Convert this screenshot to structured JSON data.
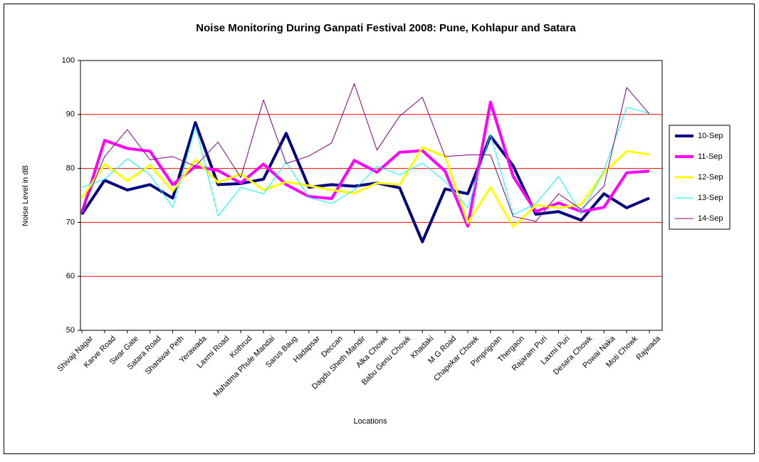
{
  "chart_data": {
    "type": "line",
    "title": "Noise Monitoring During Ganpati Festival 2008: Pune, Kohlapur and Satara",
    "y_label": "Noise Level in dB",
    "x_label": "Locations",
    "categories": [
      "Shivaji Nagar",
      "Karve Road",
      "Swar Gate",
      "Satara Road",
      "Shaniwar Peth",
      "Yerawada",
      "Laxmi Road",
      "Kothrud",
      "Mahatma Phule Mandai",
      "Sarus Baug",
      "Hadapsar",
      "Deccan",
      "Dagdu Sheth Mandir",
      "Alka Chowk",
      "Babu Genu Chowk",
      "Khadaki",
      "M G Road",
      "Chapekar Chowk",
      "Pimprigoan",
      "Thergaon",
      "Rajaram Puri",
      "Laxmi Puri",
      "Desara Chowk",
      "Powai Naka",
      "Moti Chowk",
      "Rajwada"
    ],
    "series": [
      {
        "name": "10-Sep",
        "color": "#000080",
        "values": [
          71.5,
          77.8,
          76,
          77,
          74.5,
          88.5,
          77,
          77.2,
          78,
          86.5,
          76.5,
          77,
          76.7,
          77.3,
          76.4,
          66.4,
          76.2,
          75.3,
          86,
          80.5,
          71.5,
          72,
          70.4,
          75.3,
          72.7,
          74.5
        ]
      },
      {
        "name": "11-Sep",
        "color": "#ff00ff",
        "values": [
          71.8,
          85.2,
          83.7,
          83.2,
          77,
          80.4,
          79.6,
          77.3,
          80.8,
          77,
          74.8,
          74.4,
          81.5,
          79.3,
          83,
          83.3,
          79.5,
          69.3,
          92.3,
          78.5,
          72,
          73.6,
          72,
          72.8,
          79.2,
          79.5
        ]
      },
      {
        "name": "12-Sep",
        "color": "#ffff00",
        "values": [
          74.5,
          80.8,
          77.7,
          80.6,
          75.8,
          81.6,
          77.4,
          79,
          76,
          77.5,
          76.8,
          76,
          75.4,
          77.3,
          77,
          83.9,
          82.2,
          69.9,
          76.5,
          69.2,
          73.2,
          72.7,
          73.3,
          79.3,
          83.2,
          82.6
        ]
      },
      {
        "name": "13-Sep",
        "color": "#00ffff",
        "values": [
          76.5,
          78,
          81.8,
          78.8,
          72.8,
          87.8,
          71.2,
          76.5,
          75.3,
          81.2,
          74.6,
          73.5,
          76,
          80.4,
          78.8,
          81,
          77.6,
          72.7,
          86.3,
          71.4,
          73.5,
          78.5,
          71.6,
          79.7,
          91.3,
          90.2
        ]
      },
      {
        "name": "14-Sep",
        "color": "#800080",
        "values": [
          72,
          82.2,
          87.2,
          81.6,
          82.2,
          80.4,
          84.9,
          78.3,
          92.7,
          80.9,
          82.3,
          84.7,
          95.7,
          83.4,
          89.7,
          93.2,
          82.2,
          82.5,
          82.5,
          71.1,
          70.2,
          75.3,
          72.4,
          76.7,
          95,
          90.1
        ]
      }
    ],
    "ylim": [
      50,
      100
    ],
    "yticks": [
      50,
      60,
      70,
      80,
      90,
      100
    ],
    "grid": true,
    "grid_color": "#ff0000",
    "legend": "right"
  }
}
